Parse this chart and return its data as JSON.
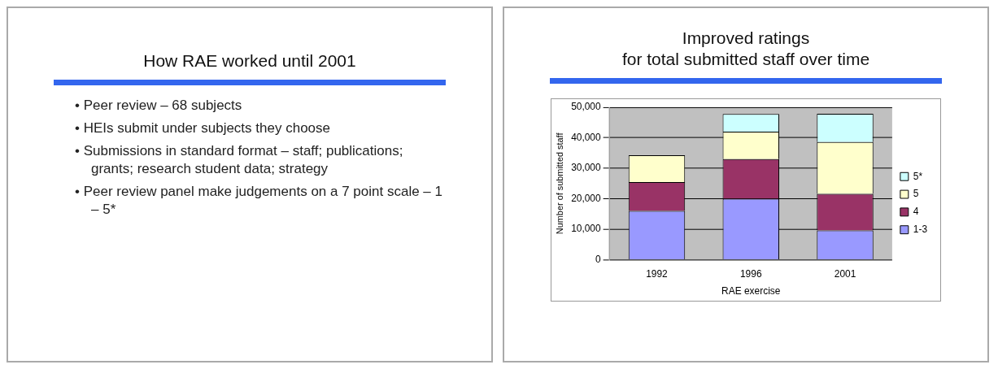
{
  "chart_data": [
    {
      "type": "other",
      "title": "How RAE worked until 2001",
      "annotations": [
        "• Peer review – 68 subjects",
        "• HEIs submit under subjects they choose",
        "• Submissions in standard format – staff; publications; grants; research student data; strategy",
        "• Peer review panel make judgements on a 7 point scale – 1 – 5*"
      ]
    },
    {
      "type": "bar",
      "title": "Improved ratings\nfor total submitted staff over time",
      "xlabel": "RAE exercise",
      "ylabel": "Number of submitted staff",
      "categories": [
        "1992",
        "1996",
        "2001"
      ],
      "stacked": true,
      "ylim": [
        0,
        50000
      ],
      "yticks": [
        {
          "value": 0,
          "label": "0"
        },
        {
          "value": 10000,
          "label": "10,000"
        },
        {
          "value": 20000,
          "label": "20,000"
        },
        {
          "value": 30000,
          "label": "30,000"
        },
        {
          "value": 40000,
          "label": "40,000"
        },
        {
          "value": 50000,
          "label": "50,000"
        }
      ],
      "grid": "y",
      "legend": "right",
      "series": [
        {
          "name": "1-3",
          "color": "#9999ff",
          "values": [
            16000,
            20000,
            9600
          ]
        },
        {
          "name": "4",
          "color": "#993366",
          "values": [
            9500,
            13000,
            12000
          ]
        },
        {
          "name": "5",
          "color": "#ffffcc",
          "values": [
            8800,
            9000,
            17000
          ]
        },
        {
          "name": "5*",
          "color": "#ccffff",
          "values": [
            null,
            5800,
            9300
          ]
        }
      ]
    }
  ]
}
